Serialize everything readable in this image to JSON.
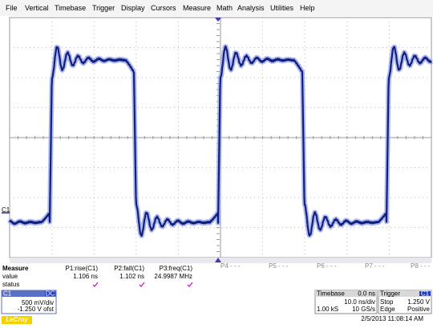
{
  "menu": [
    "File",
    "Vertical",
    "Timebase",
    "Trigger",
    "Display",
    "Cursors",
    "Measure",
    "Math",
    "Analysis",
    "Utilities",
    "Help"
  ],
  "trace_label": "C1",
  "measure": {
    "title": "Measure",
    "row_labels": [
      "value",
      "status"
    ],
    "columns": [
      {
        "name": "P1:rise(C1)",
        "value": "1.106 ns"
      },
      {
        "name": "P2:fall(C1)",
        "value": "1.102 ns"
      },
      {
        "name": "P3:freq(C1)",
        "value": "24.9987 MHz"
      }
    ],
    "empty_params": [
      "P4 - - -",
      "P5 - - -",
      "P6 - - -",
      "P7 - - -",
      "P8 - - -"
    ]
  },
  "channel": {
    "name": "C1",
    "coupling": "DC",
    "scale": "500 mV/div",
    "offset": "-1.250 V ofst"
  },
  "timebase": {
    "title": "Timebase",
    "delay": "0.0 ns",
    "scale": "10.0 ns/div",
    "samples": "1.00 kS",
    "rate": "10 GS/s"
  },
  "trigger": {
    "title": "Trigger",
    "source": "C1",
    "mode": "Stop",
    "level": "1.250 V",
    "type": "Edge",
    "slope": "Positive"
  },
  "timestamp": "2/5/2013 11:08:14 AM",
  "logo": "LeCroy"
}
